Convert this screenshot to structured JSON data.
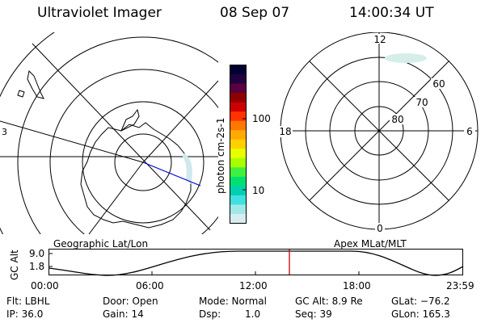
{
  "header": {
    "title": "Ultraviolet Imager",
    "date": "08 Sep 07",
    "time": "14:00:34 UT"
  },
  "colorbar": {
    "unit_label": "photon cm-2s-1",
    "ticks": [
      "100",
      "10"
    ],
    "colors": [
      "#000033",
      "#220040",
      "#5a0040",
      "#900000",
      "#cc0000",
      "#ff3300",
      "#ff7700",
      "#ffaa00",
      "#ffd000",
      "#e8ff00",
      "#a8ff00",
      "#40f040",
      "#00e070",
      "#00d0b0",
      "#40e0e0",
      "#a0e8e8",
      "#d8eeee"
    ]
  },
  "left_map": {
    "label": "Geographic Lat/Lon",
    "partial_tick": "3"
  },
  "right_map": {
    "label": "Apex MLat/MLT",
    "mlt_labels": {
      "top": "12",
      "left": "18",
      "right": "6",
      "bottom": "0"
    },
    "lat_labels": [
      "60",
      "70",
      "80"
    ]
  },
  "altitude_plot": {
    "ylabel": "GC Alt",
    "yticks": [
      "9.0",
      "1.8"
    ],
    "xticks": [
      "00:00",
      "06:00",
      "12:00",
      "18:00",
      "23:59"
    ],
    "marker_time": "14:00",
    "marker_color": "#cc0000"
  },
  "info": {
    "flt": "Flt: LBHL",
    "door": "Door: Open",
    "mode": "Mode: Normal",
    "gc_alt": "GC Alt: 8.9 Re",
    "glat": "GLat: −76.2",
    "ip": "IP: 36.0",
    "gain": "Gain: 14",
    "dsp_label": "Dsp:",
    "dsp_value": "1.0",
    "seq": "Seq: 39",
    "glon": "GLon: 165.3"
  }
}
